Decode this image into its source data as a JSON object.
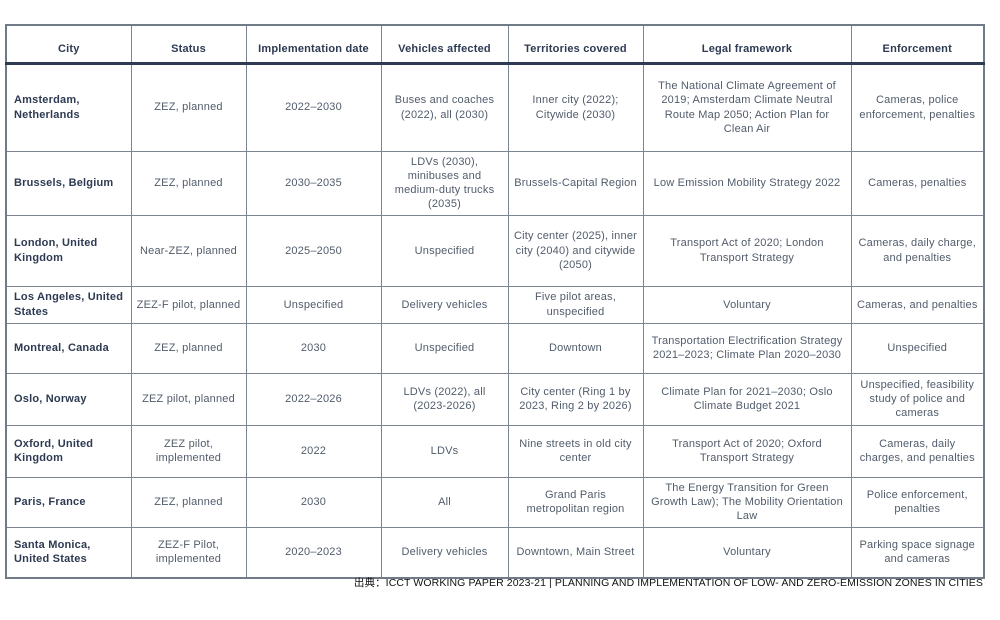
{
  "table": {
    "columns": [
      "City",
      "Status",
      "Implementation date",
      "Vehicles affected",
      "Territories covered",
      "Legal framework",
      "Enforcement"
    ],
    "rows": [
      {
        "city": "Amsterdam, Netherlands",
        "status": "ZEZ, planned",
        "implementation_date": "2022–2030",
        "vehicles_affected": "Buses and coaches (2022), all (2030)",
        "territories_covered": "Inner city (2022); Citywide (2030)",
        "legal_framework": "The National Climate Agreement of 2019; Amsterdam Climate Neutral Route Map 2050; Action Plan for Clean Air",
        "enforcement": "Cameras, police enforcement, penalties"
      },
      {
        "city": "Brussels, Belgium",
        "status": "ZEZ, planned",
        "implementation_date": "2030–2035",
        "vehicles_affected": "LDVs (2030), minibuses and medium-duty trucks (2035)",
        "territories_covered": "Brussels-Capital Region",
        "legal_framework": "Low Emission Mobility Strategy 2022",
        "enforcement": "Cameras, penalties"
      },
      {
        "city": "London, United Kingdom",
        "status": "Near-ZEZ, planned",
        "implementation_date": "2025–2050",
        "vehicles_affected": "Unspecified",
        "territories_covered": "City center (2025), inner city (2040) and citywide (2050)",
        "legal_framework": "Transport Act of 2020; London Transport Strategy",
        "enforcement": "Cameras, daily charge, and penalties"
      },
      {
        "city": "Los Angeles, United States",
        "status": "ZEZ-F pilot, planned",
        "implementation_date": "Unspecified",
        "vehicles_affected": "Delivery vehicles",
        "territories_covered": "Five pilot areas, unspecified",
        "legal_framework": "Voluntary",
        "enforcement": "Cameras, and penalties"
      },
      {
        "city": "Montreal, Canada",
        "status": "ZEZ, planned",
        "implementation_date": "2030",
        "vehicles_affected": "Unspecified",
        "territories_covered": "Downtown",
        "legal_framework": "Transportation Electrification Strategy 2021–2023; Climate Plan 2020–2030",
        "enforcement": "Unspecified"
      },
      {
        "city": "Oslo, Norway",
        "status": "ZEZ pilot, planned",
        "implementation_date": "2022–2026",
        "vehicles_affected": "LDVs (2022), all (2023-2026)",
        "territories_covered": "City center (Ring 1 by 2023, Ring 2 by 2026)",
        "legal_framework": "Climate Plan for 2021–2030; Oslo Climate Budget 2021",
        "enforcement": "Unspecified, feasibility study of police and cameras"
      },
      {
        "city": "Oxford, United Kingdom",
        "status": "ZEZ pilot, implemented",
        "implementation_date": "2022",
        "vehicles_affected": "LDVs",
        "territories_covered": "Nine streets in old city center",
        "legal_framework": "Transport Act of 2020; Oxford Transport Strategy",
        "enforcement": "Cameras, daily charges, and penalties"
      },
      {
        "city": "Paris, France",
        "status": "ZEZ, planned",
        "implementation_date": "2030",
        "vehicles_affected": "All",
        "territories_covered": "Grand Paris metropolitan region",
        "legal_framework": "The Energy Transition for Green Growth Law); The Mobility Orientation Law",
        "enforcement": "Police enforcement, penalties"
      },
      {
        "city": "Santa Monica, United States",
        "status": "ZEZ-F Pilot, implemented",
        "implementation_date": "2020–2023",
        "vehicles_affected": "Delivery vehicles",
        "territories_covered": "Downtown, Main Street",
        "legal_framework": "Voluntary",
        "enforcement": "Parking space signage and cameras"
      }
    ]
  },
  "footer": {
    "source": "出典：ICCT WORKING PAPER 2023-21 | PLANNING AND IMPLEMENTATION OF LOW- AND ZERO-EMISSION ZONES IN CITIES"
  },
  "colors": {
    "heading_text": "#2d3a52",
    "body_text": "#515c6b",
    "grid_line": "#7b8591",
    "header_rule": "#2d3a52",
    "background": "#ffffff"
  }
}
